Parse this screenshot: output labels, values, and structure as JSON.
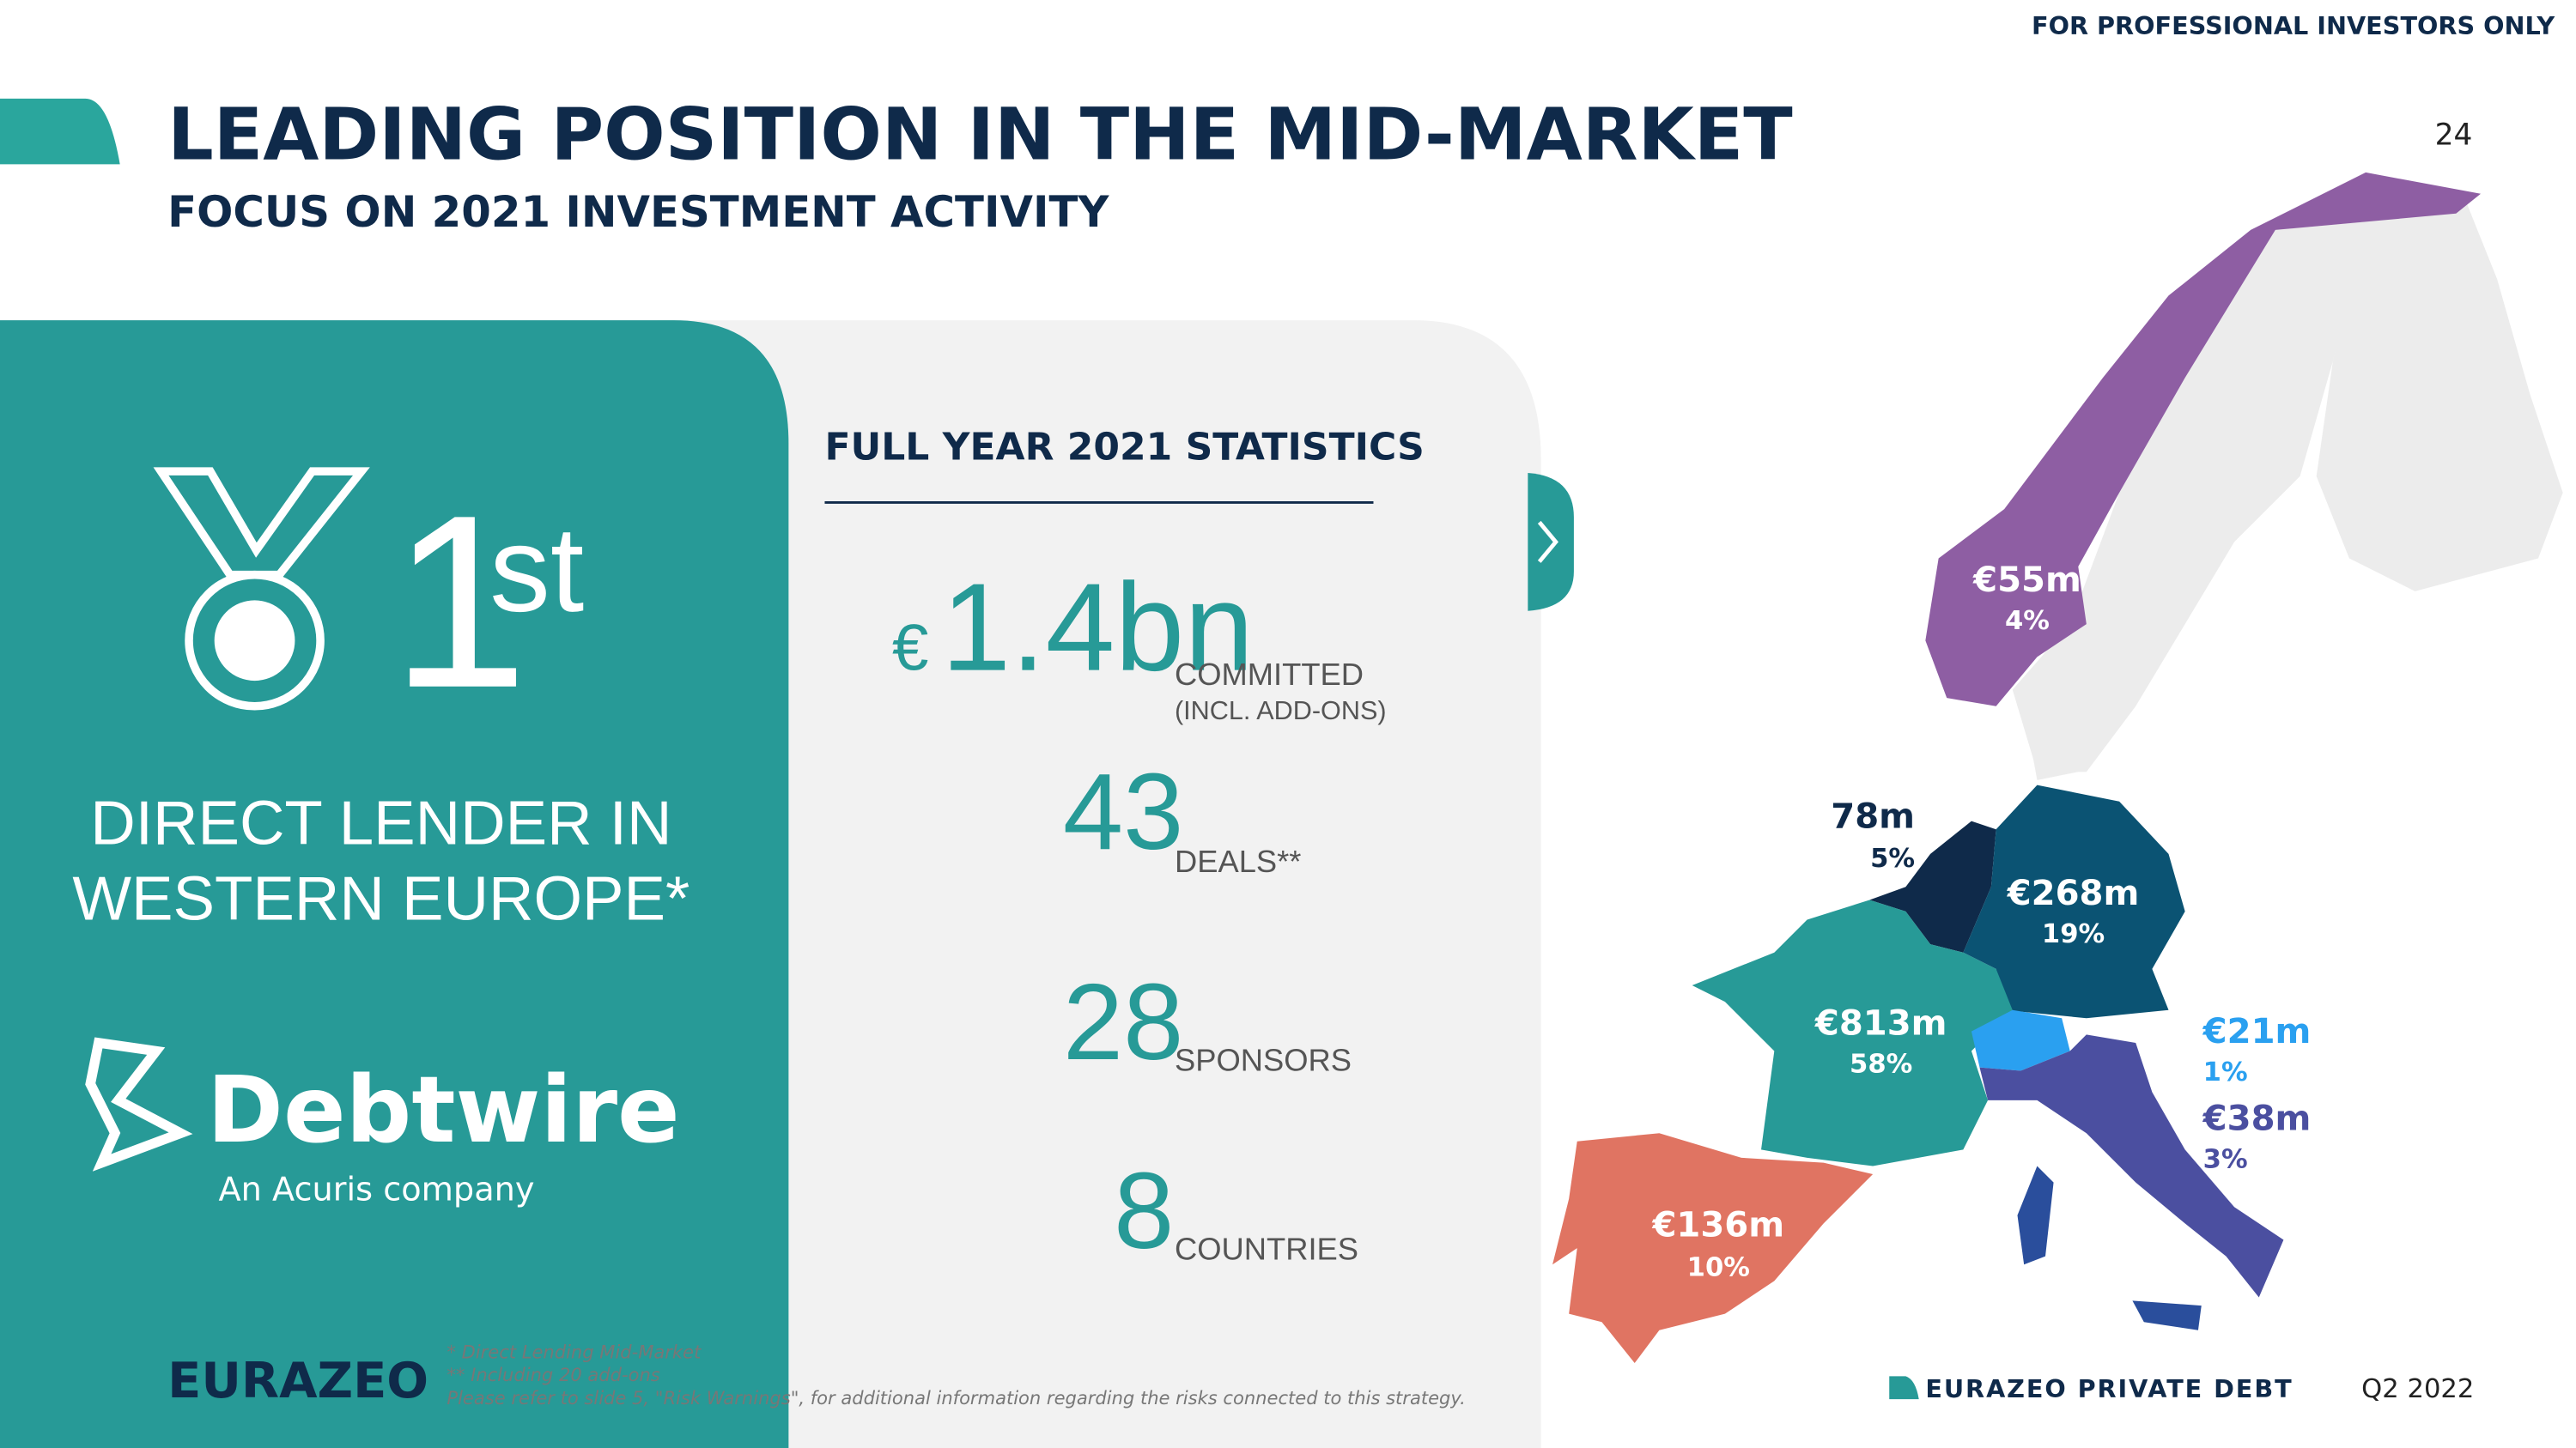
{
  "header": {
    "notice": "FOR PROFESSIONAL INVESTORS ONLY",
    "title": "LEADING POSITION IN THE MID-MARKET",
    "subtitle": "FOCUS ON 2021 INVESTMENT ACTIVITY",
    "page_number": "24"
  },
  "ranking": {
    "rank": "1",
    "rank_suffix": "st",
    "description": [
      "DIRECT LENDER IN",
      "WESTERN EUROPE*"
    ],
    "logo": "Debtwire",
    "logo_tagline": "An Acuris company"
  },
  "stats": {
    "heading": "FULL YEAR 2021 STATISTICS",
    "items": [
      {
        "currency": "€",
        "value": "1.4bn",
        "label": "COMMITTED",
        "note": "(INCL. ADD-ONS)"
      },
      {
        "value": "43",
        "label": "DEALS**"
      },
      {
        "value": "28",
        "label": "SPONSORS"
      },
      {
        "value": "8",
        "label": "COUNTRIES"
      }
    ]
  },
  "map": {
    "regions": [
      {
        "amount": "€55m",
        "share": "4%"
      },
      {
        "amount": "78m",
        "share": "5%"
      },
      {
        "amount": "€268m",
        "share": "19%"
      },
      {
        "amount": "€813m",
        "share": "58%"
      },
      {
        "amount": "€21m",
        "share": "1%"
      },
      {
        "amount": "€38m",
        "share": "3%"
      },
      {
        "amount": "€136m",
        "share": "10%"
      }
    ]
  },
  "footer": {
    "brand": "EURAZEO",
    "footnotes": [
      "* Direct Lending Mid-Market",
      "** Including 20 add-ons",
      "Please refer to slide 5, \"Risk Warnings\", for additional information regarding the risks connected to this strategy."
    ],
    "division": "EURAZEO PRIVATE DEBT",
    "period": "Q2 2022"
  }
}
